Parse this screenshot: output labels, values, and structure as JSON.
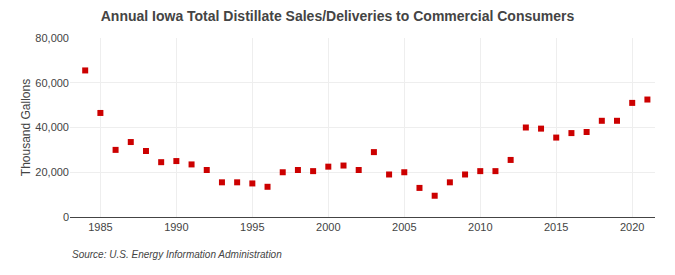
{
  "chart_data": {
    "type": "scatter",
    "title": "Annual Iowa Total Distillate Sales/Deliveries to Commercial Consumers",
    "ylabel": "Thousand Gallons",
    "annotations": [
      "Source: U.S. Energy Information Administration"
    ],
    "x": [
      1984,
      1985,
      1986,
      1987,
      1988,
      1989,
      1990,
      1991,
      1992,
      1993,
      1994,
      1995,
      1996,
      1997,
      1998,
      1999,
      2000,
      2001,
      2002,
      2003,
      2004,
      2005,
      2006,
      2007,
      2008,
      2009,
      2010,
      2011,
      2012,
      2013,
      2014,
      2015,
      2016,
      2017,
      2018,
      2019,
      2020,
      2021
    ],
    "values": [
      65500,
      46500,
      30000,
      33500,
      29500,
      24500,
      25000,
      23500,
      21000,
      15500,
      15500,
      15000,
      13500,
      20000,
      21000,
      20500,
      22500,
      23000,
      21000,
      29000,
      19000,
      20000,
      13000,
      9500,
      15500,
      19000,
      20500,
      20500,
      25500,
      40000,
      39500,
      35500,
      37500,
      38000,
      43000,
      43000,
      51000,
      52500
    ],
    "color": "#cc0000",
    "marker": "square",
    "xlim": [
      1983,
      2021.5
    ],
    "xticks": [
      1985,
      1990,
      1995,
      2000,
      2005,
      2010,
      2015,
      2020
    ],
    "ylim": [
      0,
      80000
    ],
    "yticks": [
      0,
      {
        "value": 20000,
        "label": "20,000"
      },
      {
        "value": 40000,
        "label": "40,000"
      },
      {
        "value": 60000,
        "label": "60,000"
      },
      {
        "value": 80000,
        "label": "80,000"
      }
    ],
    "grid": true
  }
}
